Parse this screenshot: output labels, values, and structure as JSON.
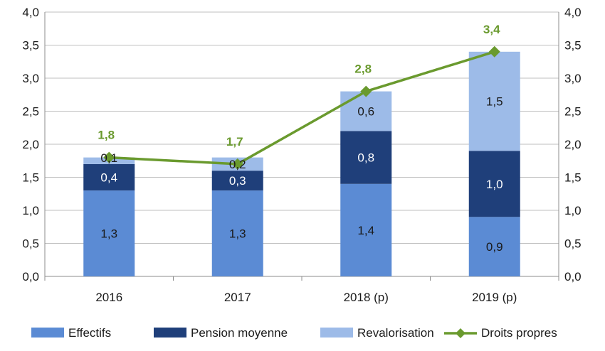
{
  "chart_data": {
    "type": "bar",
    "stacked": true,
    "categories": [
      "2016",
      "2017",
      "2018 (p)",
      "2019 (p)"
    ],
    "series": [
      {
        "name": "Effectifs",
        "values": [
          1.3,
          1.3,
          1.4,
          0.9
        ],
        "labels": [
          "1,3",
          "1,3",
          "1,4",
          "0,9"
        ],
        "color": "#5b8bd4"
      },
      {
        "name": "Pension moyenne",
        "values": [
          0.4,
          0.3,
          0.8,
          1.0
        ],
        "labels": [
          "0,4",
          "0,3",
          "0,8",
          "1,0"
        ],
        "color": "#1f3f7a"
      },
      {
        "name": "Revalorisation",
        "values": [
          0.1,
          0.2,
          0.6,
          1.5
        ],
        "labels": [
          "0,1",
          "0,2",
          "0,6",
          "1,5"
        ],
        "color": "#9dbbe8"
      }
    ],
    "line": {
      "name": "Droits propres",
      "values": [
        1.8,
        1.7,
        2.8,
        3.4
      ],
      "labels": [
        "1,8",
        "1,7",
        "2,8",
        "3,4"
      ],
      "color": "#6a9a2e"
    },
    "ylim": [
      0,
      4
    ],
    "yticks": [
      "0,0",
      "0,5",
      "1,0",
      "1,5",
      "2,0",
      "2,5",
      "3,0",
      "3,5",
      "4,0"
    ],
    "grid": true,
    "legend": "bottom"
  }
}
